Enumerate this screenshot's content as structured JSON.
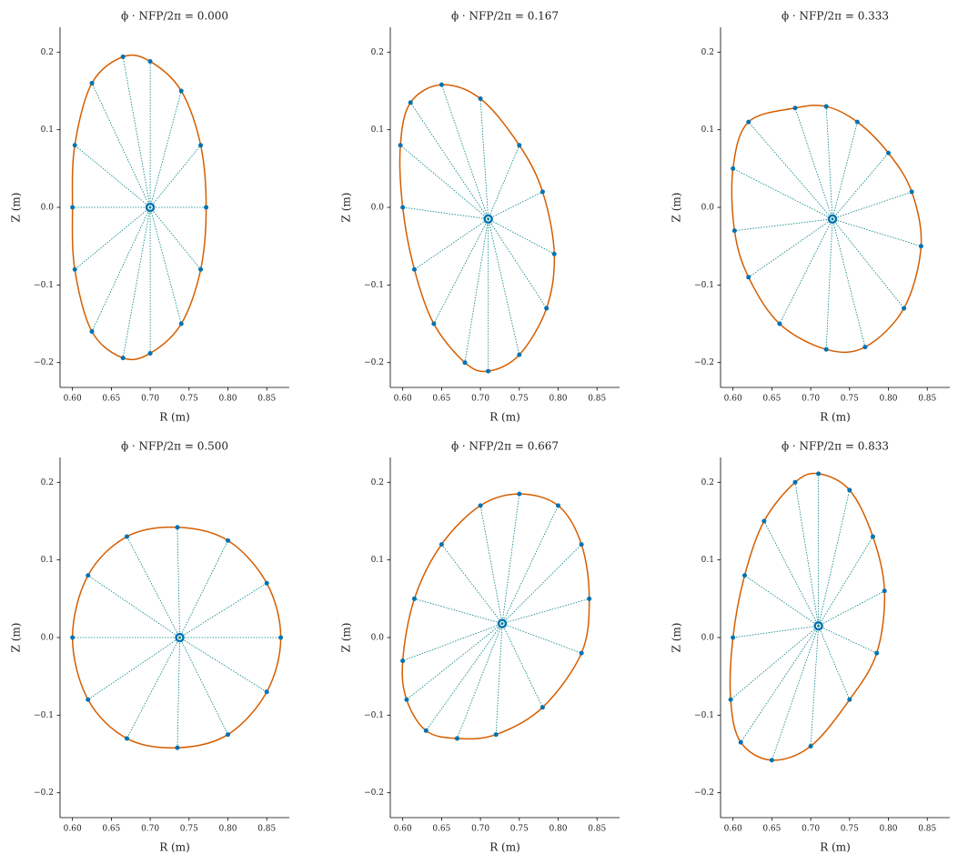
{
  "chart_data": [
    {
      "type": "line",
      "title": "ϕ · NFP/2π = 0.000",
      "x_label": "R (m)",
      "y_label": "Z (m)",
      "xlim": [
        0.584,
        0.879
      ],
      "ylim": [
        -0.232,
        0.232
      ],
      "xticks": [
        {
          "value": 0.6,
          "label": "0.60"
        },
        {
          "value": 0.65,
          "label": "0.65"
        },
        {
          "value": 0.7,
          "label": "0.70"
        },
        {
          "value": 0.75,
          "label": "0.75"
        },
        {
          "value": 0.8,
          "label": "0.80"
        },
        {
          "value": 0.85,
          "label": "0.85"
        }
      ],
      "yticks": [
        {
          "value": -0.2,
          "label": "−0.2"
        },
        {
          "value": -0.1,
          "label": "−0.1"
        },
        {
          "value": 0,
          "label": "0.0"
        },
        0.1,
        0.2
      ],
      "series": [
        {
          "color": "#0072b2",
          "line_color": "#d55e00",
          "x": [
            0.772,
            0.765,
            0.74,
            0.7,
            0.665,
            0.625,
            0.603,
            0.6,
            0.603,
            0.625,
            0.665,
            0.7,
            0.74,
            0.765
          ],
          "values": [
            0,
            0.08,
            0.15,
            0.188,
            0.194,
            0.16,
            0.08,
            0,
            -0.08,
            -0.16,
            -0.194,
            -0.188,
            -0.15,
            -0.08
          ]
        }
      ],
      "magnetic_axis": {
        "x": 0.7,
        "y": 0.0
      }
    },
    {
      "type": "line",
      "title": "ϕ · NFP/2π = 0.167",
      "x_label": "R (m)",
      "y_label": "Z (m)",
      "xlim": [
        0.584,
        0.879
      ],
      "ylim": [
        -0.232,
        0.232
      ],
      "xticks": [
        {
          "value": 0.6,
          "label": "0.60"
        },
        {
          "value": 0.65,
          "label": "0.65"
        },
        {
          "value": 0.7,
          "label": "0.70"
        },
        {
          "value": 0.75,
          "label": "0.75"
        },
        {
          "value": 0.8,
          "label": "0.80"
        },
        {
          "value": 0.85,
          "label": "0.85"
        }
      ],
      "yticks": [
        {
          "value": -0.2,
          "label": "−0.2"
        },
        {
          "value": -0.1,
          "label": "−0.1"
        },
        {
          "value": 0,
          "label": "0.0"
        },
        0.1,
        0.2
      ],
      "series": [
        {
          "color": "#0072b2",
          "line_color": "#d55e00",
          "x": [
            0.795,
            0.78,
            0.75,
            0.7,
            0.65,
            0.61,
            0.597,
            0.6,
            0.615,
            0.64,
            0.68,
            0.71,
            0.75,
            0.785
          ],
          "values": [
            -0.06,
            0.02,
            0.08,
            0.14,
            0.158,
            0.135,
            0.08,
            0,
            -0.08,
            -0.15,
            -0.2,
            -0.211,
            -0.19,
            -0.13
          ]
        }
      ],
      "magnetic_axis": {
        "x": 0.71,
        "y": -0.015
      }
    },
    {
      "type": "line",
      "title": "ϕ · NFP/2π = 0.333",
      "x_label": "R (m)",
      "y_label": "Z (m)",
      "xlim": [
        0.584,
        0.879
      ],
      "ylim": [
        -0.232,
        0.232
      ],
      "xticks": [
        {
          "value": 0.6,
          "label": "0.60"
        },
        {
          "value": 0.65,
          "label": "0.65"
        },
        {
          "value": 0.7,
          "label": "0.70"
        },
        {
          "value": 0.75,
          "label": "0.75"
        },
        {
          "value": 0.8,
          "label": "0.80"
        },
        {
          "value": 0.85,
          "label": "0.85"
        }
      ],
      "yticks": [
        {
          "value": -0.2,
          "label": "−0.2"
        },
        {
          "value": -0.1,
          "label": "−0.1"
        },
        {
          "value": 0,
          "label": "0.0"
        },
        0.1,
        0.2
      ],
      "series": [
        {
          "color": "#0072b2",
          "line_color": "#d55e00",
          "x": [
            0.842,
            0.83,
            0.8,
            0.76,
            0.72,
            0.68,
            0.62,
            0.6,
            0.602,
            0.62,
            0.66,
            0.72,
            0.77,
            0.82
          ],
          "values": [
            -0.05,
            0.02,
            0.07,
            0.11,
            0.13,
            0.128,
            0.11,
            0.05,
            -0.03,
            -0.09,
            -0.15,
            -0.183,
            -0.18,
            -0.13
          ]
        }
      ],
      "magnetic_axis": {
        "x": 0.728,
        "y": -0.015
      }
    },
    {
      "type": "line",
      "title": "ϕ · NFP/2π = 0.500",
      "x_label": "R (m)",
      "y_label": "Z (m)",
      "xlim": [
        0.584,
        0.879
      ],
      "ylim": [
        -0.232,
        0.232
      ],
      "xticks": [
        {
          "value": 0.6,
          "label": "0.60"
        },
        {
          "value": 0.65,
          "label": "0.65"
        },
        {
          "value": 0.7,
          "label": "0.70"
        },
        {
          "value": 0.75,
          "label": "0.75"
        },
        {
          "value": 0.8,
          "label": "0.80"
        },
        {
          "value": 0.85,
          "label": "0.85"
        }
      ],
      "yticks": [
        {
          "value": -0.2,
          "label": "−0.2"
        },
        {
          "value": -0.1,
          "label": "−0.1"
        },
        {
          "value": 0,
          "label": "0.0"
        },
        0.1,
        0.2
      ],
      "series": [
        {
          "color": "#0072b2",
          "line_color": "#d55e00",
          "x": [
            0.868,
            0.85,
            0.8,
            0.735,
            0.67,
            0.62,
            0.6,
            0.62,
            0.67,
            0.735,
            0.8,
            0.85
          ],
          "values": [
            0,
            0.07,
            0.125,
            0.142,
            0.13,
            0.08,
            0,
            -0.08,
            -0.13,
            -0.142,
            -0.125,
            -0.07
          ]
        }
      ],
      "magnetic_axis": {
        "x": 0.738,
        "y": 0.0
      }
    },
    {
      "type": "line",
      "title": "ϕ · NFP/2π = 0.667",
      "x_label": "R (m)",
      "y_label": "Z (m)",
      "xlim": [
        0.584,
        0.879
      ],
      "ylim": [
        -0.232,
        0.232
      ],
      "xticks": [
        {
          "value": 0.6,
          "label": "0.60"
        },
        {
          "value": 0.65,
          "label": "0.65"
        },
        {
          "value": 0.7,
          "label": "0.70"
        },
        {
          "value": 0.75,
          "label": "0.75"
        },
        {
          "value": 0.8,
          "label": "0.80"
        },
        {
          "value": 0.85,
          "label": "0.85"
        }
      ],
      "yticks": [
        {
          "value": -0.2,
          "label": "−0.2"
        },
        {
          "value": -0.1,
          "label": "−0.1"
        },
        {
          "value": 0,
          "label": "0.0"
        },
        0.1,
        0.2
      ],
      "series": [
        {
          "color": "#0072b2",
          "line_color": "#d55e00",
          "x": [
            0.84,
            0.83,
            0.8,
            0.75,
            0.7,
            0.65,
            0.615,
            0.6,
            0.605,
            0.63,
            0.67,
            0.72,
            0.78,
            0.83
          ],
          "values": [
            0.05,
            0.12,
            0.17,
            0.185,
            0.17,
            0.12,
            0.05,
            -0.03,
            -0.08,
            -0.12,
            -0.13,
            -0.125,
            -0.09,
            -0.02
          ]
        }
      ],
      "magnetic_axis": {
        "x": 0.728,
        "y": 0.018
      }
    },
    {
      "type": "line",
      "title": "ϕ · NFP/2π = 0.833",
      "x_label": "R (m)",
      "y_label": "Z (m)",
      "xlim": [
        0.584,
        0.879
      ],
      "ylim": [
        -0.232,
        0.232
      ],
      "xticks": [
        {
          "value": 0.6,
          "label": "0.60"
        },
        {
          "value": 0.65,
          "label": "0.65"
        },
        {
          "value": 0.7,
          "label": "0.70"
        },
        {
          "value": 0.75,
          "label": "0.75"
        },
        {
          "value": 0.8,
          "label": "0.80"
        },
        {
          "value": 0.85,
          "label": "0.85"
        }
      ],
      "yticks": [
        {
          "value": -0.2,
          "label": "−0.2"
        },
        {
          "value": -0.1,
          "label": "−0.1"
        },
        {
          "value": 0,
          "label": "0.0"
        },
        0.1,
        0.2
      ],
      "series": [
        {
          "color": "#0072b2",
          "line_color": "#d55e00",
          "x": [
            0.795,
            0.78,
            0.75,
            0.71,
            0.68,
            0.64,
            0.615,
            0.6,
            0.597,
            0.61,
            0.65,
            0.7,
            0.75,
            0.785
          ],
          "values": [
            0.06,
            0.13,
            0.19,
            0.211,
            0.2,
            0.15,
            0.08,
            0,
            -0.08,
            -0.135,
            -0.158,
            -0.14,
            -0.08,
            -0.02
          ]
        }
      ],
      "magnetic_axis": {
        "x": 0.71,
        "y": 0.015
      }
    }
  ]
}
